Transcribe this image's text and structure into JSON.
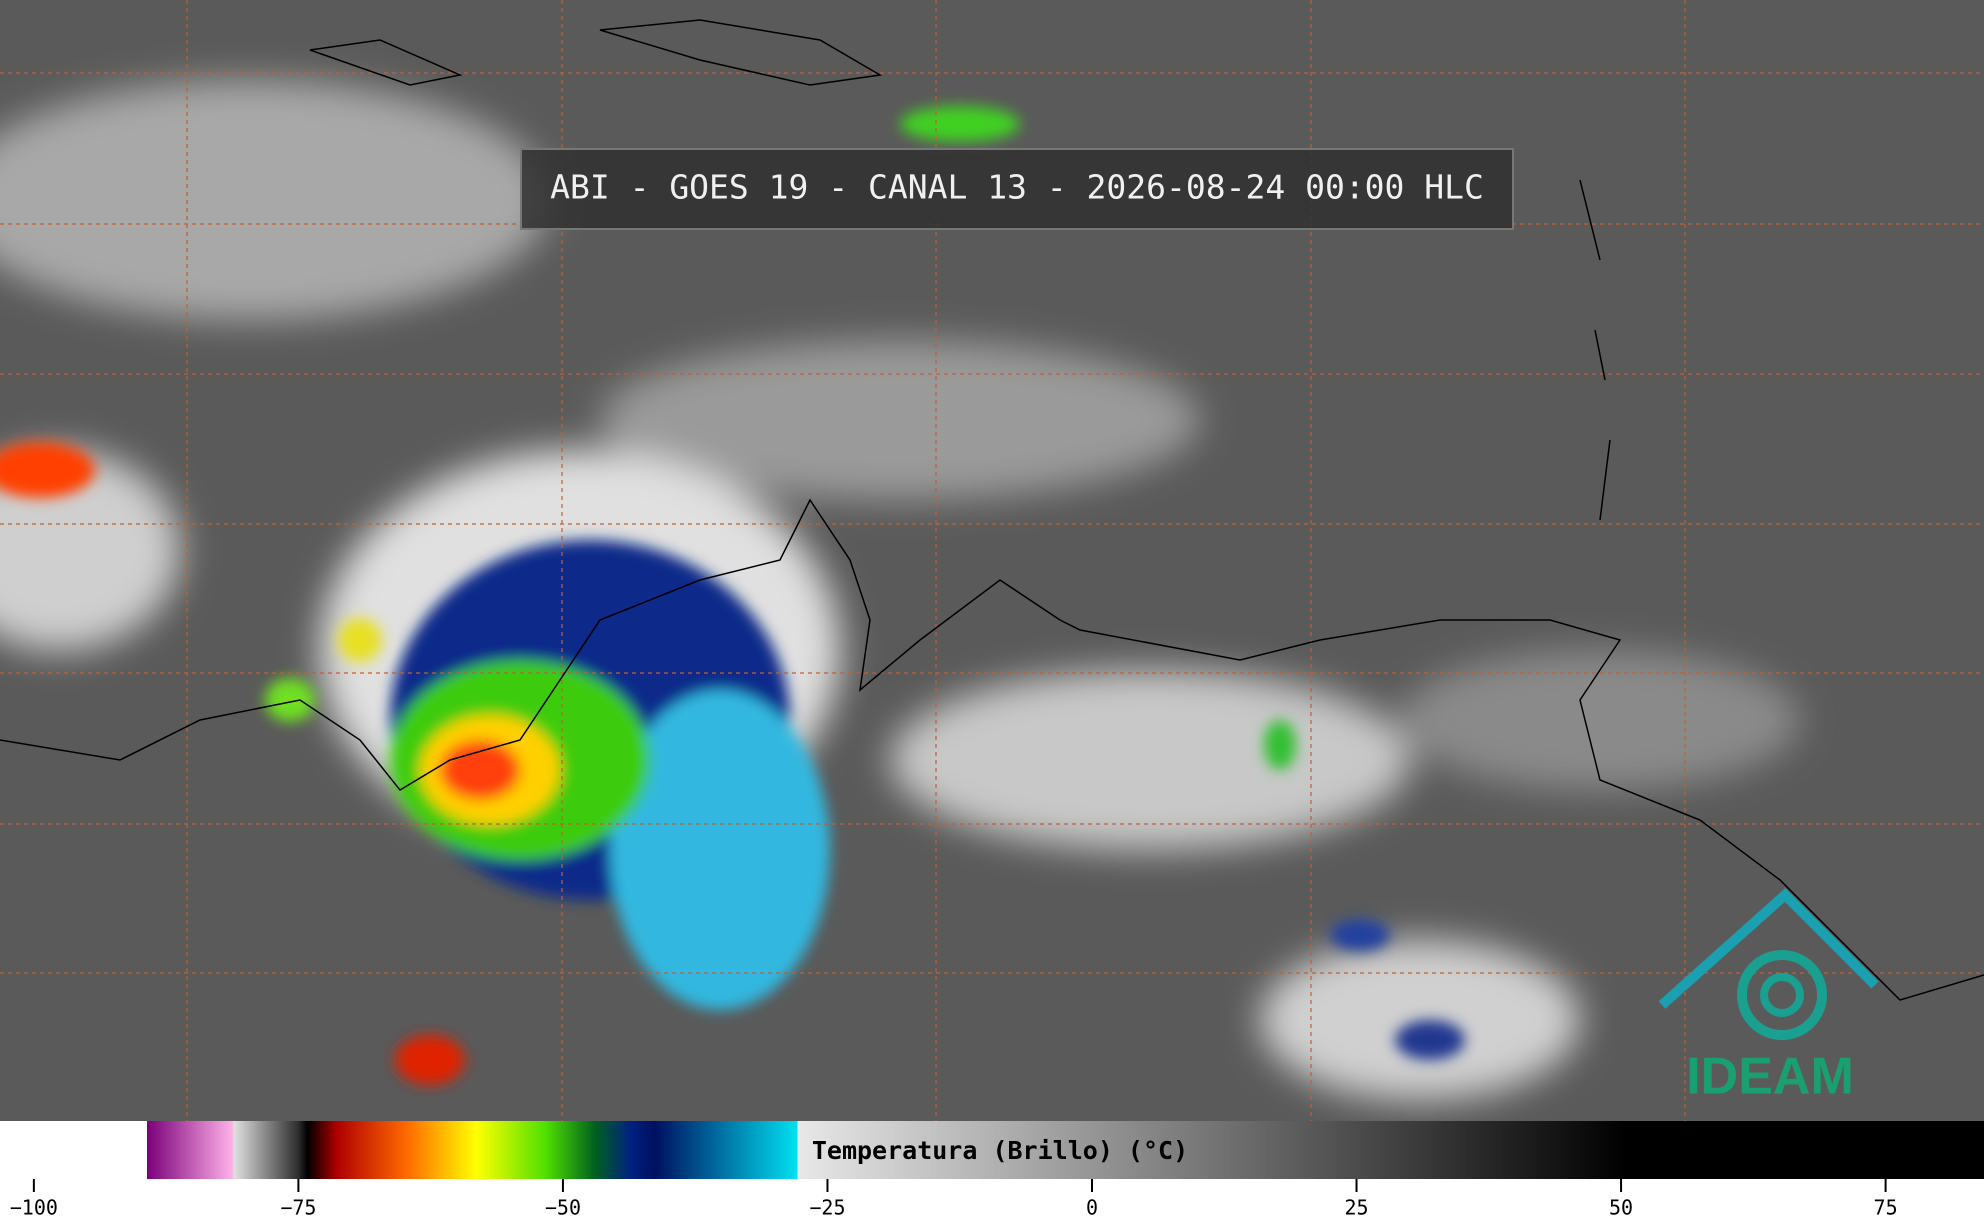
{
  "header": {
    "title": "ABI - GOES 19 - CANAL 13 - 2026-08-24 00:00 HLC"
  },
  "colorbar": {
    "label": "Temperatura (Brillo) (°C)",
    "range": [
      -103.2,
      84.3
    ],
    "ticks": [
      {
        "value": -100,
        "label": "−100"
      },
      {
        "value": -75,
        "label": "−75"
      },
      {
        "value": -50,
        "label": "−50"
      },
      {
        "value": -25,
        "label": "−25"
      },
      0,
      25,
      50,
      75
    ]
  },
  "logo": {
    "text": "IDEAM"
  }
}
